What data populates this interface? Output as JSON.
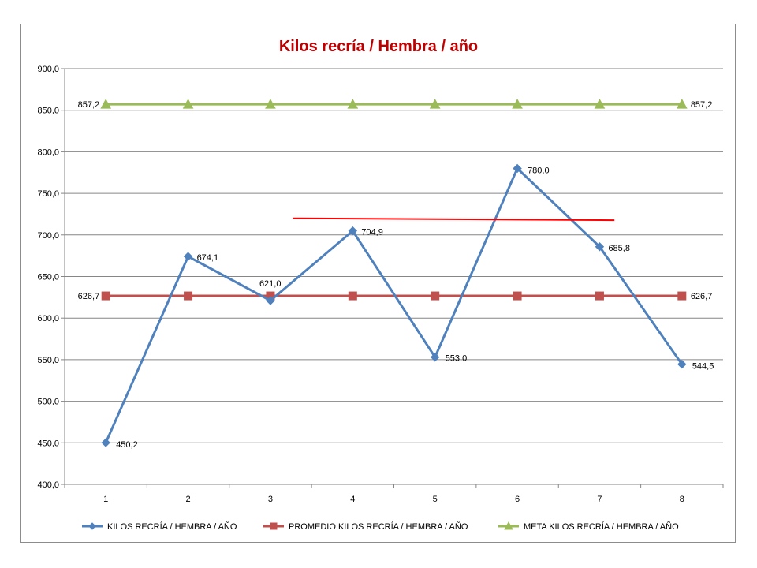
{
  "chart_data": {
    "type": "line",
    "title": "Kilos recría  / Hembra / año",
    "x": [
      1,
      2,
      3,
      4,
      5,
      6,
      7,
      8
    ],
    "x_tick_labels": [
      "1",
      "2",
      "3",
      "4",
      "5",
      "6",
      "7",
      "8"
    ],
    "ylim": [
      400,
      900
    ],
    "y_ticks": [
      400,
      450,
      500,
      550,
      600,
      650,
      700,
      750,
      800,
      850,
      900
    ],
    "y_tick_labels": [
      "400,0",
      "450,0",
      "500,0",
      "550,0",
      "600,0",
      "650,0",
      "700,0",
      "750,0",
      "800,0",
      "850,0",
      "900,0"
    ],
    "grid": "horizontal",
    "legend_position": "bottom",
    "series": [
      {
        "name": "KILOS RECRÍA  / HEMBRA  / AÑO",
        "color": "#4f81bd",
        "marker": "diamond",
        "values": [
          450.2,
          674.1,
          621.0,
          704.9,
          553.0,
          780.0,
          685.8,
          544.5
        ],
        "labels": [
          "450,2",
          "674,1",
          "621,0",
          "704,9",
          "553,0",
          "780,0",
          "685,8",
          "544,5"
        ]
      },
      {
        "name": "PROMEDIO KILOS RECRÍA  / HEMBRA  / AÑO",
        "color": "#c0504d",
        "marker": "square",
        "values": [
          626.7,
          626.7,
          626.7,
          626.7,
          626.7,
          626.7,
          626.7,
          626.7
        ],
        "labels": [
          "626,7",
          "",
          "",
          "",
          "",
          "",
          "",
          "626,7"
        ]
      },
      {
        "name": "META KILOS RECRÍA  / HEMBRA  / AÑO",
        "color": "#9bbb59",
        "marker": "triangle",
        "values": [
          857.2,
          857.2,
          857.2,
          857.2,
          857.2,
          857.2,
          857.2,
          857.2
        ],
        "labels": [
          "857,2",
          "",
          "",
          "",
          "",
          "",
          "",
          "857,2"
        ]
      }
    ],
    "trendline": {
      "color": "#ff0000",
      "x_start": 3.27,
      "x_end": 7.18,
      "y_start": 720.0,
      "y_end": 717.7
    }
  }
}
